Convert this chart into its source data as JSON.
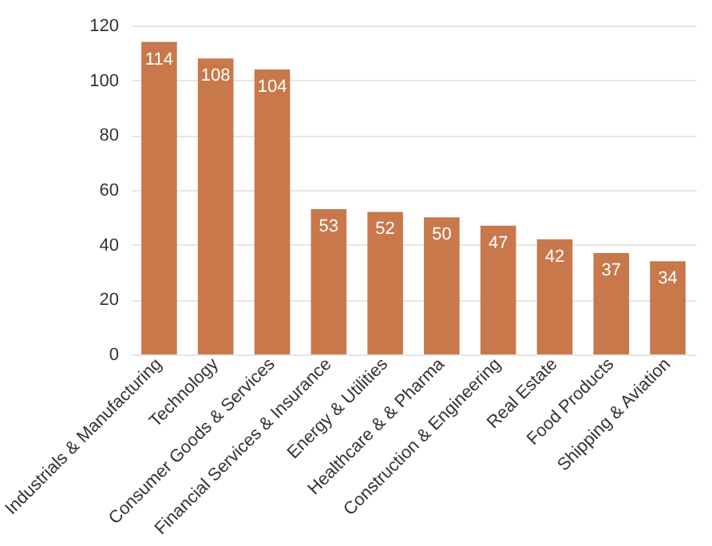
{
  "chart_data": {
    "type": "bar",
    "categories": [
      "Industrials & Manufacturing",
      "Technology",
      "Consumer Goods & Services",
      "Financial Services & Insurance",
      "Energy & Utilities",
      "Healthcare & & Pharma",
      "Construction & Engineering",
      "Real Estate",
      "Food Products",
      "Shipping & Aviation"
    ],
    "values": [
      114,
      108,
      104,
      53,
      52,
      50,
      47,
      42,
      37,
      34
    ],
    "color": "#c8784a",
    "ylim": [
      0,
      120
    ],
    "yticks": [
      0,
      20,
      40,
      60,
      80,
      100,
      120
    ],
    "grid": "y",
    "data_labels": true
  }
}
